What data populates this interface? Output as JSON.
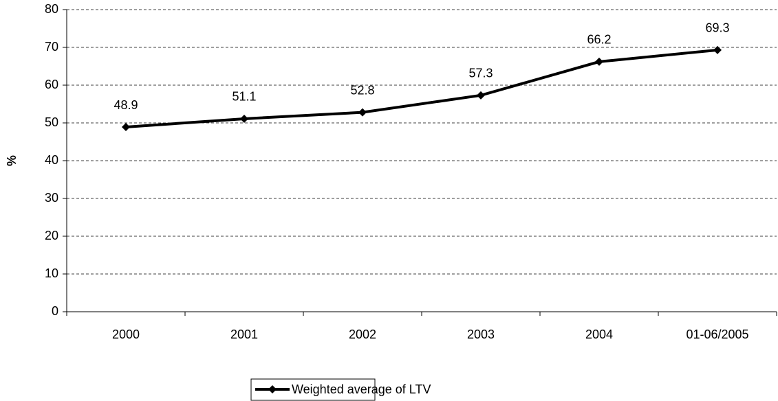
{
  "chart_data": {
    "type": "line",
    "y_label": "%",
    "categories": [
      "2000",
      "2001",
      "2002",
      "2003",
      "2004",
      "01-06/2005"
    ],
    "series": [
      {
        "name": "Weighted average of LTV",
        "color": "#000000",
        "values": [
          48.9,
          51.1,
          52.8,
          57.3,
          66.2,
          69.3
        ]
      }
    ],
    "ylim": [
      0,
      80
    ],
    "yticks": [
      0,
      10,
      20,
      30,
      40,
      50,
      60,
      70,
      80
    ],
    "grid": true,
    "legend": "bottom",
    "data_labels": true
  }
}
